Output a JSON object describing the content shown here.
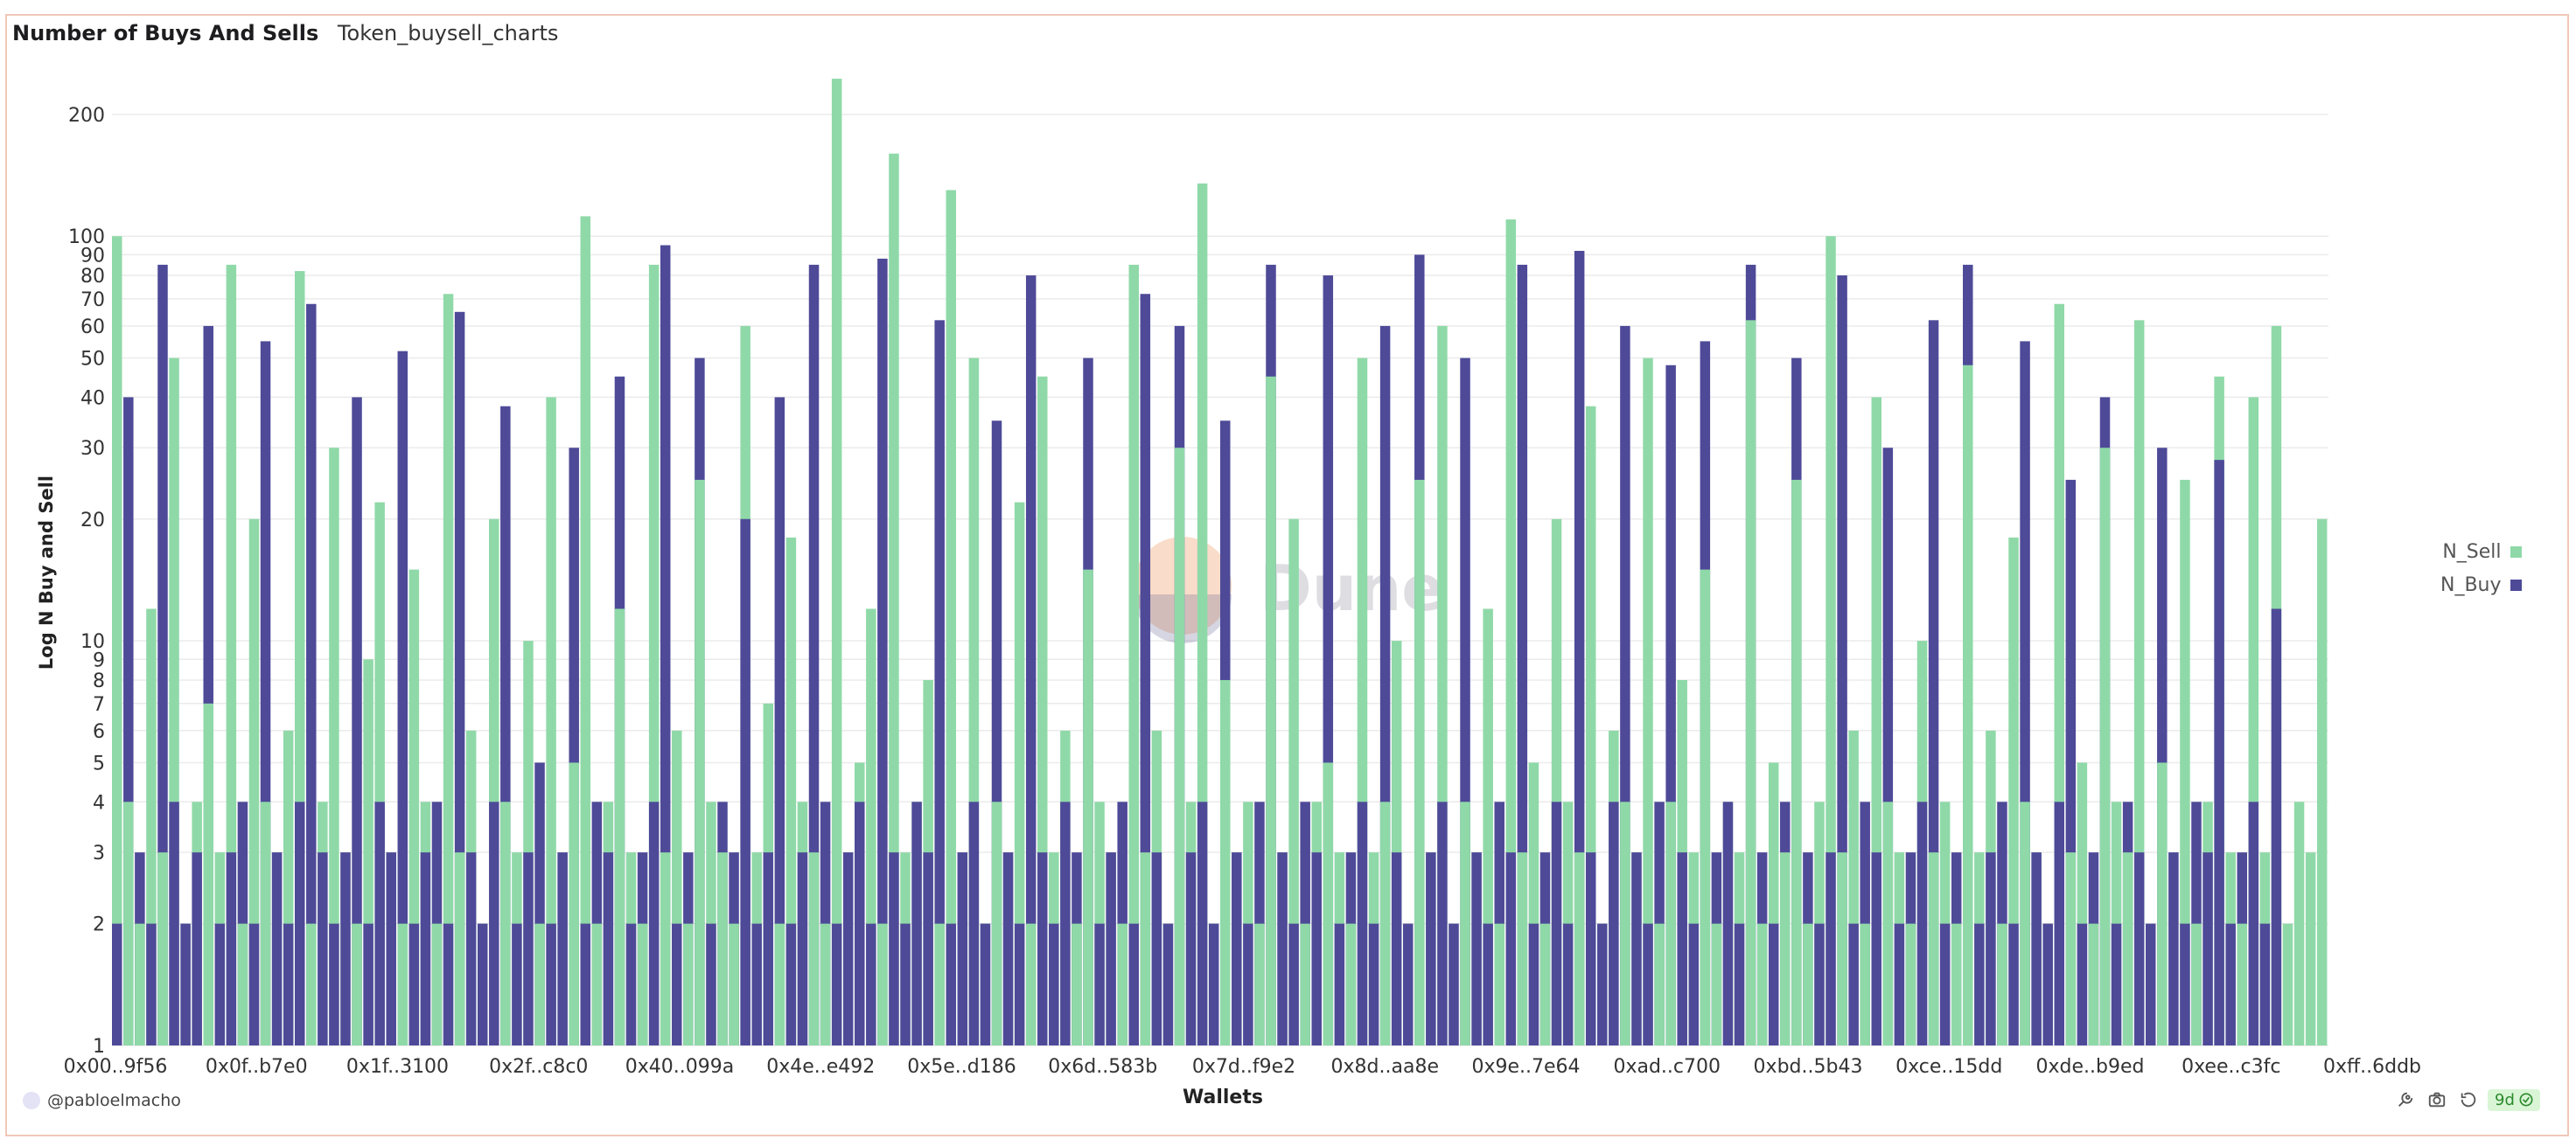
{
  "header": {
    "title": "Number of Buys And Sells",
    "subtitle": "Token_buysell_charts"
  },
  "legend": [
    {
      "label": "N_Sell",
      "color": "#8fd9a8"
    },
    {
      "label": "N_Buy",
      "color": "#4e4a98"
    }
  ],
  "footer": {
    "user": "@pabloelmacho",
    "age": "9d"
  },
  "icons": [
    "settings-icon",
    "camera-icon",
    "refresh-icon",
    "check-circle-icon"
  ],
  "watermark": {
    "text": "Dune"
  },
  "chart_data": {
    "type": "bar",
    "mode": "overlay",
    "title": "Number of Buys And Sells",
    "xlabel": "Wallets",
    "ylabel": "Log N Buy and Sell",
    "yscale": "log",
    "ylim": [
      1,
      250
    ],
    "yticks": [
      1,
      2,
      3,
      4,
      5,
      6,
      7,
      8,
      9,
      10,
      20,
      30,
      40,
      50,
      60,
      70,
      80,
      90,
      100,
      200
    ],
    "category_tick_labels": [
      "0x00..9f56",
      "0x0f..b7e0",
      "0x1f..3100",
      "0x2f..c8c0",
      "0x40..099a",
      "0x4e..e492",
      "0x5e..d186",
      "0x6d..583b",
      "0x7d..f9e2",
      "0x8d..aa8e",
      "0x9e..7e64",
      "0xad..c700",
      "0xbd..5b43",
      "0xce..15dd",
      "0xde..b9ed",
      "0xee..c3fc",
      "0xff..6ddb"
    ],
    "series": [
      {
        "name": "N_Sell",
        "color": "#8fd9a8",
        "values": [
          100,
          4,
          2,
          12,
          3,
          50,
          2,
          4,
          7,
          3,
          85,
          2,
          20,
          4,
          3,
          6,
          82,
          2,
          4,
          30,
          3,
          2,
          9,
          22,
          3,
          2,
          15,
          4,
          2,
          72,
          3,
          6,
          2,
          20,
          4,
          3,
          10,
          2,
          40,
          3,
          5,
          112,
          2,
          4,
          12,
          3,
          2,
          85,
          3,
          6,
          2,
          25,
          4,
          3,
          2,
          60,
          3,
          7,
          2,
          18,
          4,
          3,
          2,
          245,
          3,
          5,
          12,
          2,
          160,
          3,
          4,
          8,
          2,
          130,
          3,
          50,
          2,
          4,
          3,
          22,
          2,
          45,
          3,
          6,
          2,
          15,
          4,
          3,
          2,
          85,
          3,
          6,
          2,
          30,
          4,
          135,
          2,
          8,
          3,
          4,
          2,
          45,
          3,
          20,
          2,
          4,
          5,
          3,
          2,
          50,
          3,
          4,
          10,
          2,
          25,
          3,
          60,
          2,
          4,
          3,
          12,
          2,
          110,
          3,
          5,
          2,
          20,
          4,
          3,
          38,
          2,
          6,
          4,
          3,
          50,
          2,
          4,
          8,
          3,
          15,
          2,
          4,
          3,
          62,
          2,
          5,
          3,
          25,
          2,
          4,
          100,
          3,
          6,
          2,
          40,
          4,
          3,
          2,
          10,
          3,
          4,
          2,
          48,
          3,
          6,
          2,
          18,
          4,
          3,
          2,
          68,
          3,
          5,
          2,
          30,
          4,
          3,
          62,
          2,
          5,
          3,
          25,
          2,
          4,
          45,
          3,
          2,
          40,
          3,
          60,
          2,
          4,
          3,
          20
        ],
        "note": "Representative subsample of ~1000 wallets; heights estimated from log axis"
      },
      {
        "name": "N_Buy",
        "color": "#4e4a98",
        "values": [
          2,
          40,
          3,
          2,
          85,
          4,
          2,
          3,
          60,
          2,
          3,
          4,
          2,
          55,
          3,
          2,
          4,
          68,
          3,
          2,
          3,
          40,
          2,
          4,
          3,
          52,
          2,
          3,
          4,
          2,
          65,
          3,
          2,
          4,
          38,
          2,
          3,
          5,
          2,
          3,
          30,
          2,
          4,
          3,
          45,
          2,
          3,
          4,
          95,
          2,
          3,
          50,
          2,
          4,
          3,
          20,
          2,
          3,
          40,
          2,
          3,
          85,
          4,
          2,
          3,
          4,
          2,
          88,
          3,
          2,
          4,
          3,
          62,
          2,
          3,
          4,
          2,
          35,
          3,
          2,
          80,
          3,
          2,
          4,
          3,
          50,
          2,
          3,
          4,
          2,
          72,
          3,
          2,
          60,
          3,
          4,
          2,
          35,
          3,
          2,
          4,
          85,
          3,
          2,
          4,
          3,
          80,
          2,
          3,
          4,
          2,
          60,
          3,
          2,
          90,
          3,
          4,
          2,
          50,
          3,
          2,
          4,
          3,
          85,
          2,
          3,
          4,
          2,
          92,
          3,
          2,
          4,
          60,
          3,
          2,
          4,
          48,
          3,
          2,
          55,
          3,
          4,
          2,
          85,
          3,
          2,
          4,
          50,
          3,
          2,
          3,
          80,
          2,
          4,
          3,
          30,
          2,
          3,
          4,
          62,
          2,
          3,
          85,
          2,
          3,
          4,
          2,
          55,
          3,
          2,
          4,
          25,
          2,
          3,
          40,
          2,
          4,
          3,
          2,
          30,
          3,
          2,
          4,
          3,
          28,
          2,
          3,
          4,
          2,
          12
        ],
        "note": "Representative subsample; heights estimated from log axis"
      }
    ]
  }
}
